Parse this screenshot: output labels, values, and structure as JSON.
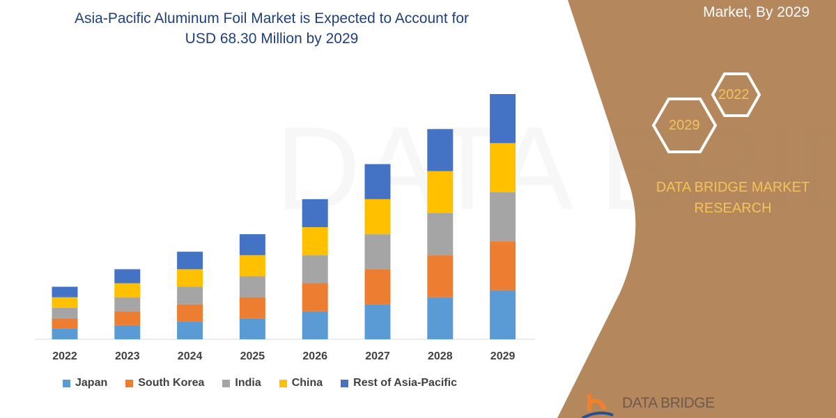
{
  "header": {
    "title_line1": "Asia-Pacific Aluminum Foil Market is Expected to Account for",
    "title_line2": "USD 68.30 Million by 2029",
    "side_title": "Market, By 2029"
  },
  "side_panel": {
    "hex_2022": "2022",
    "hex_2029": "2029",
    "brand_line1": "DATA BRIDGE MARKET",
    "brand_line2": "RESEARCH",
    "logo_text": "DATA BRIDGE",
    "panel_color": "#b5875c",
    "accent_color": "#f3c35a"
  },
  "chart_data": {
    "type": "bar",
    "stacked": true,
    "title": "Asia-Pacific Aluminum Foil Market is Expected to Account for USD 68.30 Million by 2029",
    "xlabel": "",
    "ylabel": "",
    "y_axis_shown": false,
    "grid": false,
    "legend_position": "bottom",
    "categories": [
      "2022",
      "2023",
      "2024",
      "2025",
      "2026",
      "2027",
      "2028",
      "2029"
    ],
    "series": [
      {
        "name": "Japan",
        "color": "#5b9bd5",
        "values": [
          15,
          20,
          25,
          30,
          40,
          50,
          60,
          70
        ]
      },
      {
        "name": "South Korea",
        "color": "#ed7d31",
        "values": [
          15,
          20,
          25,
          30,
          40,
          50,
          60,
          70
        ]
      },
      {
        "name": "India",
        "color": "#a5a5a5",
        "values": [
          15,
          20,
          25,
          30,
          40,
          50,
          60,
          70
        ]
      },
      {
        "name": "China",
        "color": "#ffc000",
        "values": [
          15,
          20,
          25,
          30,
          40,
          50,
          60,
          70
        ]
      },
      {
        "name": "Rest of Asia-Pacific",
        "color": "#4472c4",
        "values": [
          15,
          20,
          25,
          30,
          40,
          50,
          60,
          70
        ]
      }
    ],
    "ylim": [
      0,
      360
    ]
  }
}
